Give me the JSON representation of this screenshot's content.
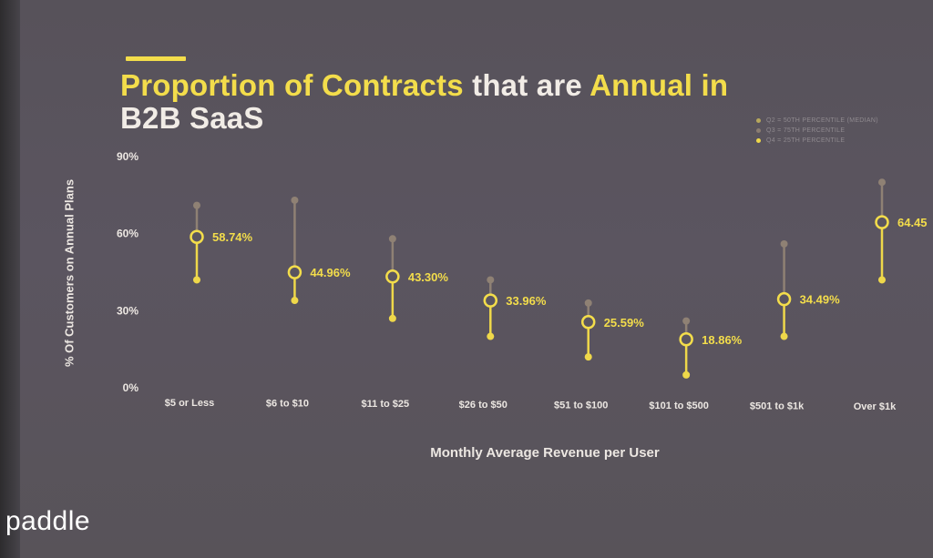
{
  "chart_data": {
    "type": "range",
    "title_segments": [
      {
        "text": "Proportion of Contracts",
        "highlight": true
      },
      {
        "text": " that are ",
        "highlight": false
      },
      {
        "text": "Annual in",
        "highlight": true
      },
      {
        "text": " B2B SaaS",
        "highlight": false
      }
    ],
    "xlabel": "Monthly Average Revenue per User",
    "ylabel": "% Of Customers on Annual Plans",
    "ylim": [
      0,
      90
    ],
    "yticks": [
      0,
      30,
      60,
      90
    ],
    "ytick_labels": [
      "0%",
      "30%",
      "60%",
      "90%"
    ],
    "categories": [
      "$5 or Less",
      "$6 to $10",
      "$11 to $25",
      "$26 to $50",
      "$51 to $100",
      "$101 to $500",
      "$501 to $1k",
      "Over $1k"
    ],
    "median": [
      58.74,
      44.96,
      43.3,
      33.96,
      25.59,
      18.86,
      34.49,
      64.45
    ],
    "median_labels": [
      "58.74%",
      "44.96%",
      "43.30%",
      "33.96%",
      "25.59%",
      "18.86%",
      "34.49%",
      "64.45"
    ],
    "q3_75th": [
      71,
      73,
      58,
      42,
      33,
      26,
      56,
      80
    ],
    "q1_25th": [
      42,
      34,
      27,
      20,
      12,
      5,
      20,
      42
    ],
    "legend": [
      {
        "label": "Q2 = 50TH PERCENTILE (MEDIAN)",
        "color": "#b7a85c"
      },
      {
        "label": "Q3 = 75TH PERCENTILE",
        "color": "#8a7d71"
      },
      {
        "label": "Q4 = 25TH PERCENTILE",
        "color": "#efd84a"
      }
    ],
    "legend_position": "top-right",
    "grid": false
  },
  "brand": {
    "logo_text": "paddle"
  },
  "colors": {
    "accent": "#f3dd4b",
    "median": "#f3dd4b",
    "whisker_low": "#efd84a",
    "whisker_high": "#8f8174",
    "text": "#ece7e2"
  }
}
